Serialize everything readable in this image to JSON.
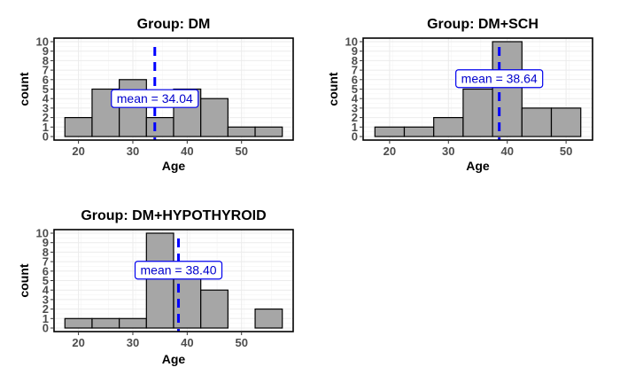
{
  "chart_data": [
    {
      "type": "bar",
      "title": "Group: DM",
      "xlabel": "Age",
      "ylabel": "count",
      "bin_width": 5,
      "bins": [
        [
          17.5,
          22.5
        ],
        [
          22.5,
          27.5
        ],
        [
          27.5,
          32.5
        ],
        [
          32.5,
          37.5
        ],
        [
          37.5,
          42.5
        ],
        [
          42.5,
          47.5
        ],
        [
          47.5,
          52.5
        ],
        [
          52.5,
          57.5
        ]
      ],
      "values": [
        2,
        5,
        6,
        2,
        5,
        4,
        1,
        1
      ],
      "mean": 34.04,
      "mean_label": "mean = 34.04",
      "xlim": [
        15.5,
        59.5
      ],
      "ylim": [
        0,
        10
      ],
      "x_ticks": [
        20,
        30,
        40,
        50
      ],
      "y_ticks": [
        0,
        1,
        2,
        3,
        4,
        5,
        6,
        7,
        8,
        9,
        10
      ],
      "label_y": 4,
      "grid": true
    },
    {
      "type": "bar",
      "title": "Group: DM+SCH",
      "xlabel": "Age",
      "ylabel": "count",
      "bin_width": 5,
      "bins": [
        [
          17.5,
          22.5
        ],
        [
          22.5,
          27.5
        ],
        [
          27.5,
          32.5
        ],
        [
          32.5,
          37.5
        ],
        [
          37.5,
          42.5
        ],
        [
          42.5,
          47.5
        ],
        [
          47.5,
          52.5
        ]
      ],
      "values": [
        1,
        1,
        2,
        5,
        10,
        3,
        3
      ],
      "mean": 38.64,
      "mean_label": "mean = 38.64",
      "xlim": [
        15.5,
        54.5
      ],
      "ylim": [
        0,
        10
      ],
      "x_ticks": [
        20,
        30,
        40,
        50
      ],
      "y_ticks": [
        0,
        1,
        2,
        3,
        4,
        5,
        6,
        7,
        8,
        9,
        10
      ],
      "label_y": 6.1,
      "grid": true
    },
    {
      "type": "bar",
      "title": "Group: DM+HYPOTHYROID",
      "xlabel": "Age",
      "ylabel": "count",
      "bin_width": 5,
      "bins": [
        [
          17.5,
          22.5
        ],
        [
          22.5,
          27.5
        ],
        [
          27.5,
          32.5
        ],
        [
          32.5,
          37.5
        ],
        [
          37.5,
          42.5
        ],
        [
          42.5,
          47.5
        ],
        [
          47.5,
          52.5
        ],
        [
          52.5,
          57.5
        ]
      ],
      "values": [
        1,
        1,
        1,
        10,
        6,
        4,
        0,
        2
      ],
      "mean": 38.4,
      "mean_label": "mean = 38.40",
      "xlim": [
        15.5,
        59.5
      ],
      "ylim": [
        0,
        10
      ],
      "x_ticks": [
        20,
        30,
        40,
        50
      ],
      "y_ticks": [
        0,
        1,
        2,
        3,
        4,
        5,
        6,
        7,
        8,
        9,
        10
      ],
      "label_y": 6.1,
      "grid": true
    }
  ],
  "colors": {
    "bar_fill": "#a6a6a6",
    "bar_outline": "#000000",
    "mean_line": "#0000ff",
    "label_text": "#0000cc",
    "label_border": "#0000ee"
  }
}
